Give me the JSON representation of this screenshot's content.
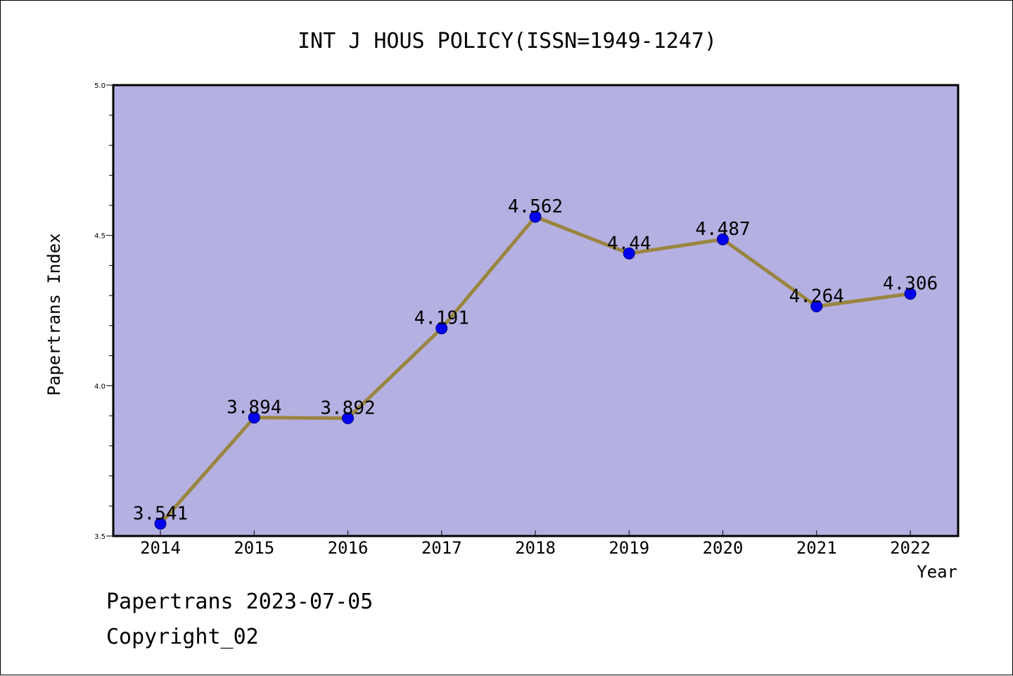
{
  "chart_data": {
    "type": "line",
    "title": "INT J HOUS POLICY(ISSN=1949-1247)",
    "xlabel": "Year",
    "ylabel": "Papertrans Index",
    "x": [
      "2014",
      "2015",
      "2016",
      "2017",
      "2018",
      "2019",
      "2020",
      "2021",
      "2022"
    ],
    "series": [
      {
        "values": [
          3.541,
          3.894,
          3.892,
          4.191,
          4.562,
          4.44,
          4.487,
          4.264,
          4.306
        ],
        "data_labels": [
          "3.541",
          "3.894",
          "3.892",
          "4.191",
          "4.562",
          "4.44",
          "4.487",
          "4.264",
          "4.306"
        ]
      }
    ],
    "ylim": [
      3.5,
      5.0
    ],
    "yticks": [
      "3.5",
      "4.0",
      "4.5",
      "5.0"
    ],
    "grid": false,
    "colors": {
      "plot_background": "#b5b0e2",
      "line": "#9a8540",
      "marker": "#0000ee",
      "marker_edge": "#00008b"
    }
  },
  "footer": {
    "line1": "Papertrans 2023-07-05",
    "line2": "Copyright_02"
  }
}
